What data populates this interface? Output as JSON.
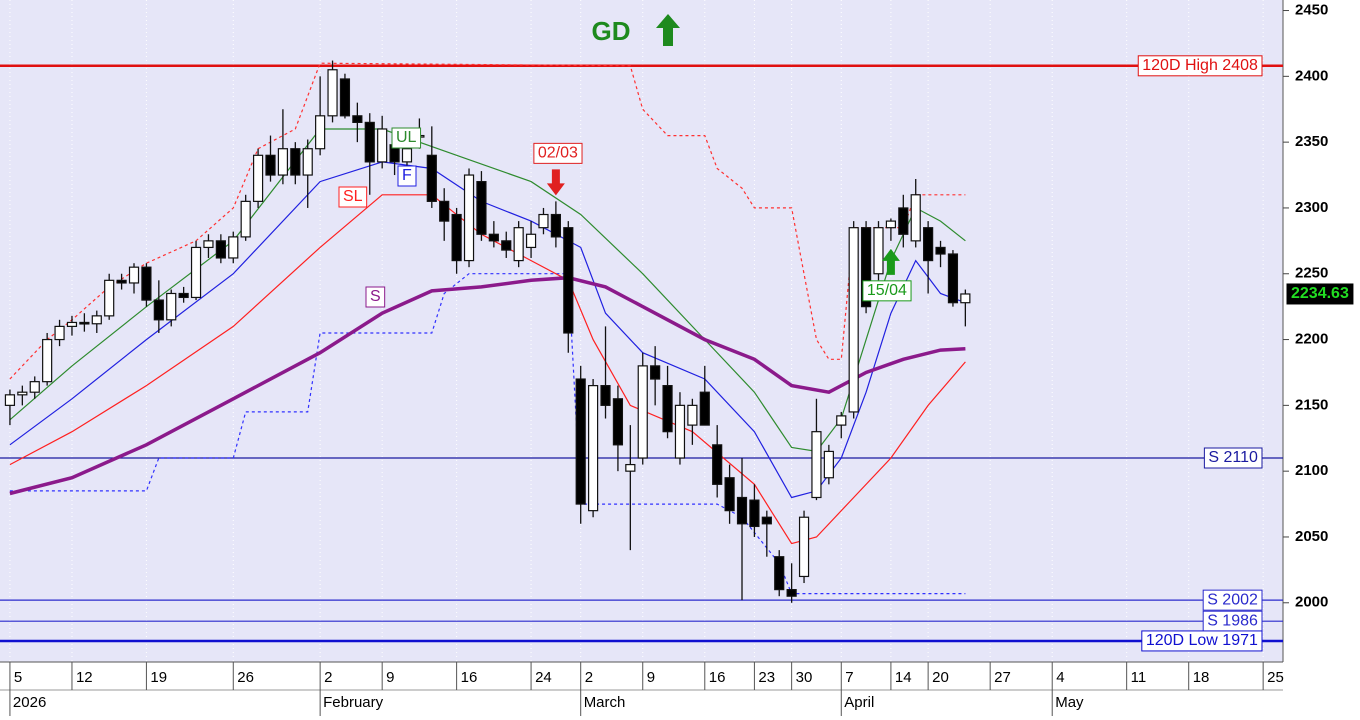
{
  "chart_data": {
    "type": "candlestick",
    "headline": "GD",
    "x": [
      0,
      1,
      2,
      3,
      4,
      5,
      6,
      7,
      8,
      9,
      10,
      11,
      12,
      13,
      14,
      15,
      16,
      17,
      18,
      19,
      20,
      21,
      22,
      23,
      24,
      25,
      26,
      27,
      28,
      29,
      30,
      31,
      32,
      33,
      34,
      35,
      36,
      37,
      38,
      39,
      40,
      41,
      42,
      43,
      44,
      45,
      46,
      47,
      48,
      49,
      50,
      51,
      52,
      53,
      54,
      55,
      56,
      57,
      58,
      59,
      60,
      61,
      62,
      63,
      64,
      65,
      66,
      67,
      68,
      69,
      70,
      71,
      72,
      73,
      74,
      75,
      76,
      77
    ],
    "open": [
      2150,
      2158,
      2160,
      2168,
      2200,
      2210,
      2213,
      2212,
      2218,
      2245,
      2243,
      2255,
      2230,
      2215,
      2235,
      2232,
      2270,
      2275,
      2262,
      2278,
      2305,
      2340,
      2325,
      2345,
      2325,
      2345,
      2370,
      2398,
      2370,
      2365,
      2335,
      2348,
      2335,
      2355,
      2340,
      2305,
      2295,
      2260,
      2320,
      2280,
      2275,
      2260,
      2270,
      2285,
      2295,
      2285,
      2170,
      2070,
      2165,
      2155,
      2100,
      2110,
      2180,
      2165,
      2110,
      2135,
      2160,
      2120,
      2095,
      2080,
      2078,
      2065,
      2035,
      2010,
      2020,
      2080,
      2095,
      2135,
      2145,
      2285,
      2250,
      2285,
      2300,
      2275,
      2285,
      2270,
      2265,
      2228
    ],
    "high": [
      2162,
      2165,
      2172,
      2205,
      2215,
      2218,
      2220,
      2222,
      2250,
      2250,
      2258,
      2258,
      2245,
      2238,
      2240,
      2275,
      2280,
      2280,
      2282,
      2310,
      2345,
      2355,
      2375,
      2350,
      2352,
      2400,
      2412,
      2402,
      2380,
      2372,
      2370,
      2360,
      2360,
      2368,
      2362,
      2315,
      2300,
      2330,
      2328,
      2290,
      2282,
      2290,
      2290,
      2300,
      2305,
      2290,
      2180,
      2170,
      2210,
      2165,
      2135,
      2190,
      2195,
      2180,
      2160,
      2155,
      2180,
      2135,
      2105,
      2110,
      2090,
      2070,
      2040,
      2030,
      2070,
      2155,
      2120,
      2145,
      2290,
      2290,
      2290,
      2292,
      2310,
      2322,
      2290,
      2275,
      2268,
      2238
    ],
    "low": [
      2135,
      2150,
      2155,
      2165,
      2195,
      2203,
      2206,
      2205,
      2215,
      2238,
      2235,
      2225,
      2205,
      2210,
      2228,
      2230,
      2262,
      2258,
      2258,
      2275,
      2300,
      2320,
      2318,
      2318,
      2300,
      2340,
      2365,
      2368,
      2350,
      2310,
      2330,
      2325,
      2330,
      2345,
      2300,
      2275,
      2250,
      2255,
      2275,
      2270,
      2262,
      2255,
      2262,
      2280,
      2270,
      2190,
      2060,
      2065,
      2140,
      2100,
      2040,
      2105,
      2150,
      2125,
      2105,
      2120,
      2140,
      2080,
      2060,
      2002,
      2050,
      2035,
      2005,
      2000,
      2015,
      2078,
      2090,
      2125,
      2140,
      2220,
      2245,
      2275,
      2270,
      2270,
      2235,
      2255,
      2225,
      2210
    ],
    "close": [
      2158,
      2160,
      2168,
      2200,
      2210,
      2213,
      2212,
      2218,
      2245,
      2243,
      2255,
      2230,
      2215,
      2235,
      2232,
      2270,
      2275,
      2262,
      2278,
      2305,
      2340,
      2325,
      2345,
      2325,
      2345,
      2370,
      2405,
      2370,
      2365,
      2335,
      2360,
      2335,
      2345,
      2355,
      2305,
      2290,
      2260,
      2325,
      2280,
      2275,
      2268,
      2285,
      2280,
      2295,
      2278,
      2205,
      2075,
      2165,
      2150,
      2120,
      2105,
      2180,
      2170,
      2130,
      2150,
      2150,
      2135,
      2090,
      2070,
      2060,
      2058,
      2060,
      2010,
      2005,
      2065,
      2130,
      2115,
      2142,
      2285,
      2225,
      2285,
      2290,
      2280,
      2310,
      2260,
      2265,
      2228,
      2234.63
    ],
    "last_price": 2234.63,
    "xlim": [
      -0.8,
      102.6
    ],
    "ylim": [
      1955,
      2458
    ],
    "yticks": [
      2000,
      2050,
      2100,
      2150,
      2200,
      2250,
      2300,
      2350,
      2400,
      2450
    ],
    "grid": true,
    "xticks": [
      {
        "value": 0,
        "label": "5"
      },
      {
        "value": 5,
        "label": "12"
      },
      {
        "value": 11,
        "label": "19"
      },
      {
        "value": 18,
        "label": "26"
      },
      {
        "value": 25,
        "label": "2"
      },
      {
        "value": 30,
        "label": "9"
      },
      {
        "value": 36,
        "label": "16"
      },
      {
        "value": 42,
        "label": "24"
      },
      {
        "value": 46,
        "label": "2"
      },
      {
        "value": 51,
        "label": "9"
      },
      {
        "value": 56,
        "label": "16"
      },
      {
        "value": 60,
        "label": "23"
      },
      {
        "value": 63,
        "label": "30"
      },
      {
        "value": 67,
        "label": "7"
      },
      {
        "value": 71,
        "label": "14"
      },
      {
        "value": 74,
        "label": "20"
      },
      {
        "value": 79,
        "label": "27"
      },
      {
        "value": 84,
        "label": "4"
      },
      {
        "value": 90,
        "label": "11"
      },
      {
        "value": 95,
        "label": "18"
      },
      {
        "value": 101,
        "label": "25"
      }
    ],
    "month_ticks": [
      {
        "value": 0,
        "label": "2026"
      },
      {
        "value": 25,
        "label": "February"
      },
      {
        "value": 46,
        "label": "March"
      },
      {
        "value": 67,
        "label": "April"
      },
      {
        "value": 84,
        "label": "May"
      }
    ],
    "series": [
      {
        "name": "UL",
        "color": "#2e8b2e",
        "width": 1.2,
        "x": [
          0,
          5,
          11,
          18,
          25,
          30,
          36,
          42,
          46,
          51,
          56,
          60,
          63,
          65,
          67,
          69,
          71,
          73,
          75,
          77
        ],
        "values": [
          2139,
          2180,
          2225,
          2275,
          2360,
          2360,
          2340,
          2320,
          2295,
          2250,
          2200,
          2160,
          2118,
          2115,
          2140,
          2200,
          2260,
          2300,
          2290,
          2275
        ]
      },
      {
        "name": "F",
        "color": "#2020e0",
        "width": 1.2,
        "x": [
          0,
          5,
          11,
          18,
          25,
          30,
          34,
          38,
          42,
          46,
          48,
          51,
          56,
          60,
          63,
          65,
          67,
          69,
          71,
          73,
          75,
          77
        ],
        "values": [
          2120,
          2155,
          2200,
          2250,
          2320,
          2335,
          2330,
          2305,
          2290,
          2270,
          2220,
          2190,
          2170,
          2130,
          2080,
          2085,
          2110,
          2160,
          2220,
          2260,
          2235,
          2228
        ]
      },
      {
        "name": "SL",
        "color": "#ff2020",
        "width": 1.2,
        "x": [
          0,
          5,
          11,
          18,
          25,
          30,
          34,
          38,
          42,
          45,
          47,
          50,
          55,
          60,
          63,
          65,
          68,
          71,
          74,
          77
        ],
        "values": [
          2105,
          2130,
          2165,
          2210,
          2270,
          2310,
          2310,
          2280,
          2260,
          2245,
          2200,
          2150,
          2130,
          2090,
          2045,
          2050,
          2080,
          2110,
          2150,
          2183
        ]
      },
      {
        "name": "S",
        "color": "#8b1a8b",
        "width": 3.5,
        "x": [
          0,
          5,
          11,
          18,
          25,
          30,
          34,
          38,
          42,
          45,
          48,
          52,
          56,
          60,
          63,
          66,
          69,
          72,
          75,
          77
        ],
        "values": [
          2083,
          2095,
          2120,
          2155,
          2190,
          2220,
          2237,
          2240,
          2245,
          2247,
          2240,
          2220,
          2200,
          2185,
          2165,
          2160,
          2175,
          2185,
          2192,
          2193
        ]
      }
    ],
    "stops": [
      {
        "color": "#ff3030",
        "x": [
          0,
          3,
          5,
          8,
          11,
          15,
          18,
          20,
          23,
          25,
          50,
          51,
          53,
          56,
          57,
          59,
          60,
          63,
          64,
          65,
          66,
          67,
          68,
          72,
          73,
          77
        ],
        "values": [
          2170,
          2200,
          2215,
          2240,
          2258,
          2275,
          2300,
          2345,
          2360,
          2410,
          2408,
          2375,
          2355,
          2355,
          2330,
          2315,
          2300,
          2300,
          2250,
          2200,
          2185,
          2185,
          2285,
          2285,
          2310,
          2310
        ]
      },
      {
        "color": "#3030ff",
        "x": [
          0,
          11,
          12,
          18,
          19,
          24,
          25,
          34,
          35,
          37,
          45,
          46,
          57,
          59,
          62,
          63,
          77
        ],
        "values": [
          2085,
          2085,
          2110,
          2110,
          2145,
          2145,
          2205,
          2205,
          2235,
          2250,
          2250,
          2075,
          2075,
          2065,
          2030,
          2007,
          2007
        ]
      }
    ],
    "levels": [
      {
        "label": "120D High 2408",
        "value": 2408,
        "color": "#e01010",
        "width": 2.5
      },
      {
        "label": "S 2110",
        "value": 2110,
        "color": "#1a1aa0",
        "width": 1.2
      },
      {
        "label": "S 2002",
        "value": 2002,
        "color": "#2a2acc",
        "width": 1.2
      },
      {
        "label": "S 1986",
        "value": 1986,
        "color": "#2a2acc",
        "width": 1.2
      },
      {
        "label": "120D Low 1971",
        "value": 1971,
        "color": "#1010d0",
        "width": 2.5
      }
    ],
    "signals": [
      {
        "text": "02/03",
        "x": 44,
        "color": "#e02020",
        "direction": "down"
      },
      {
        "text": "15/04",
        "x": 71,
        "color": "#1a9a1a",
        "direction": "up"
      }
    ]
  }
}
